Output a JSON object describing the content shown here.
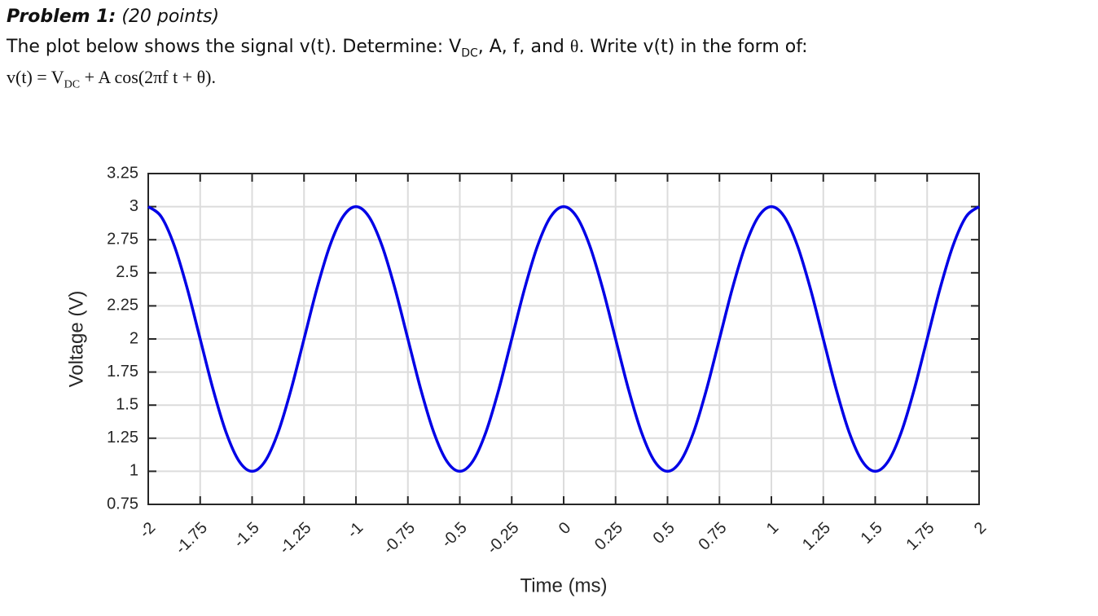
{
  "header": {
    "problem": "Problem 1:",
    "points": "(20 points)",
    "line2": [
      "The plot below shows the signal v(t). Determine: V",
      "DC",
      ", A, f, and ",
      "θ",
      ". Write v(t) in the form of:"
    ],
    "line3": [
      "v(t) = V",
      "DC",
      " + A cos(2πf t + θ)."
    ]
  },
  "chart_data": {
    "type": "line",
    "xlabel": "Time (ms)",
    "ylabel": "Voltage (V)",
    "grid": true,
    "xlim": [
      -2,
      2
    ],
    "ylim": [
      0.75,
      3.25
    ],
    "xticks": [
      -2,
      -1.75,
      -1.5,
      -1.25,
      -1,
      -0.75,
      -0.5,
      -0.25,
      0,
      0.25,
      0.5,
      0.75,
      1,
      1.25,
      1.5,
      1.75,
      2
    ],
    "yticks": [
      0.75,
      1,
      1.25,
      1.5,
      1.75,
      2,
      2.25,
      2.5,
      2.75,
      3,
      3.25
    ],
    "x": [
      -2,
      -1.9375,
      -1.875,
      -1.8125,
      -1.75,
      -1.6875,
      -1.625,
      -1.5625,
      -1.5,
      -1.4375,
      -1.375,
      -1.3125,
      -1.25,
      -1.1875,
      -1.125,
      -1.0625,
      -1,
      -0.9375,
      -0.875,
      -0.8125,
      -0.75,
      -0.6875,
      -0.625,
      -0.5625,
      -0.5,
      -0.4375,
      -0.375,
      -0.3125,
      -0.25,
      -0.1875,
      -0.125,
      -0.0625,
      0,
      0.0625,
      0.125,
      0.1875,
      0.25,
      0.3125,
      0.375,
      0.4375,
      0.5,
      0.5625,
      0.625,
      0.6875,
      0.75,
      0.8125,
      0.875,
      0.9375,
      1,
      1.0625,
      1.125,
      1.1875,
      1.25,
      1.3125,
      1.375,
      1.4375,
      1.5,
      1.5625,
      1.625,
      1.6875,
      1.75,
      1.8125,
      1.875,
      1.9375,
      2
    ],
    "series": [
      {
        "color": "#0000e6",
        "values": [
          3,
          2.924,
          2.707,
          2.383,
          2,
          1.617,
          1.293,
          1.076,
          1,
          1.076,
          1.293,
          1.617,
          2,
          2.383,
          2.707,
          2.924,
          3,
          2.924,
          2.707,
          2.383,
          2,
          1.617,
          1.293,
          1.076,
          1,
          1.076,
          1.293,
          1.617,
          2,
          2.383,
          2.707,
          2.924,
          3,
          2.924,
          2.707,
          2.383,
          2,
          1.617,
          1.293,
          1.076,
          1,
          1.076,
          1.293,
          1.617,
          2,
          2.383,
          2.707,
          2.924,
          3,
          2.924,
          2.707,
          2.383,
          2,
          1.617,
          1.293,
          1.076,
          1,
          1.076,
          1.293,
          1.617,
          2,
          2.383,
          2.707,
          2.924,
          3
        ]
      }
    ]
  }
}
